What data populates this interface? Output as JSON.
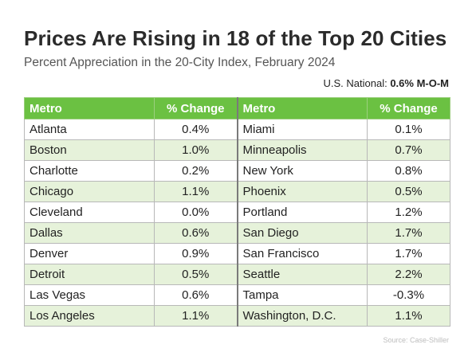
{
  "chart_data": {
    "type": "table",
    "title": "Prices Are Rising in 18 of the Top 20 Cities",
    "subtitle": "Percent Appreciation in the 20-City Index, February 2024",
    "national": {
      "label": "U.S. National: ",
      "value": "0.6% M-O-M"
    },
    "columns": [
      "Metro",
      "% Change",
      "Metro",
      "% Change"
    ],
    "rows": [
      [
        "Atlanta",
        "0.4%",
        "Miami",
        "0.1%"
      ],
      [
        "Boston",
        "1.0%",
        "Minneapolis",
        "0.7%"
      ],
      [
        "Charlotte",
        "0.2%",
        "New York",
        "0.8%"
      ],
      [
        "Chicago",
        "1.1%",
        "Phoenix",
        "0.5%"
      ],
      [
        "Cleveland",
        "0.0%",
        "Portland",
        "1.2%"
      ],
      [
        "Dallas",
        "0.6%",
        "San Diego",
        "1.7%"
      ],
      [
        "Denver",
        "0.9%",
        "San Francisco",
        "1.7%"
      ],
      [
        "Detroit",
        "0.5%",
        "Seattle",
        "2.2%"
      ],
      [
        "Las Vegas",
        "0.6%",
        "Tampa",
        "-0.3%"
      ],
      [
        "Los Angeles",
        "1.1%",
        "Washington, D.C.",
        "1.1%"
      ]
    ],
    "source": "Source: Case-Shiller"
  },
  "colors": {
    "header_bg": "#6bc142",
    "header_text": "#ffffff",
    "alt_row_bg": "#e6f2da",
    "title_text": "#2b2b2b"
  }
}
